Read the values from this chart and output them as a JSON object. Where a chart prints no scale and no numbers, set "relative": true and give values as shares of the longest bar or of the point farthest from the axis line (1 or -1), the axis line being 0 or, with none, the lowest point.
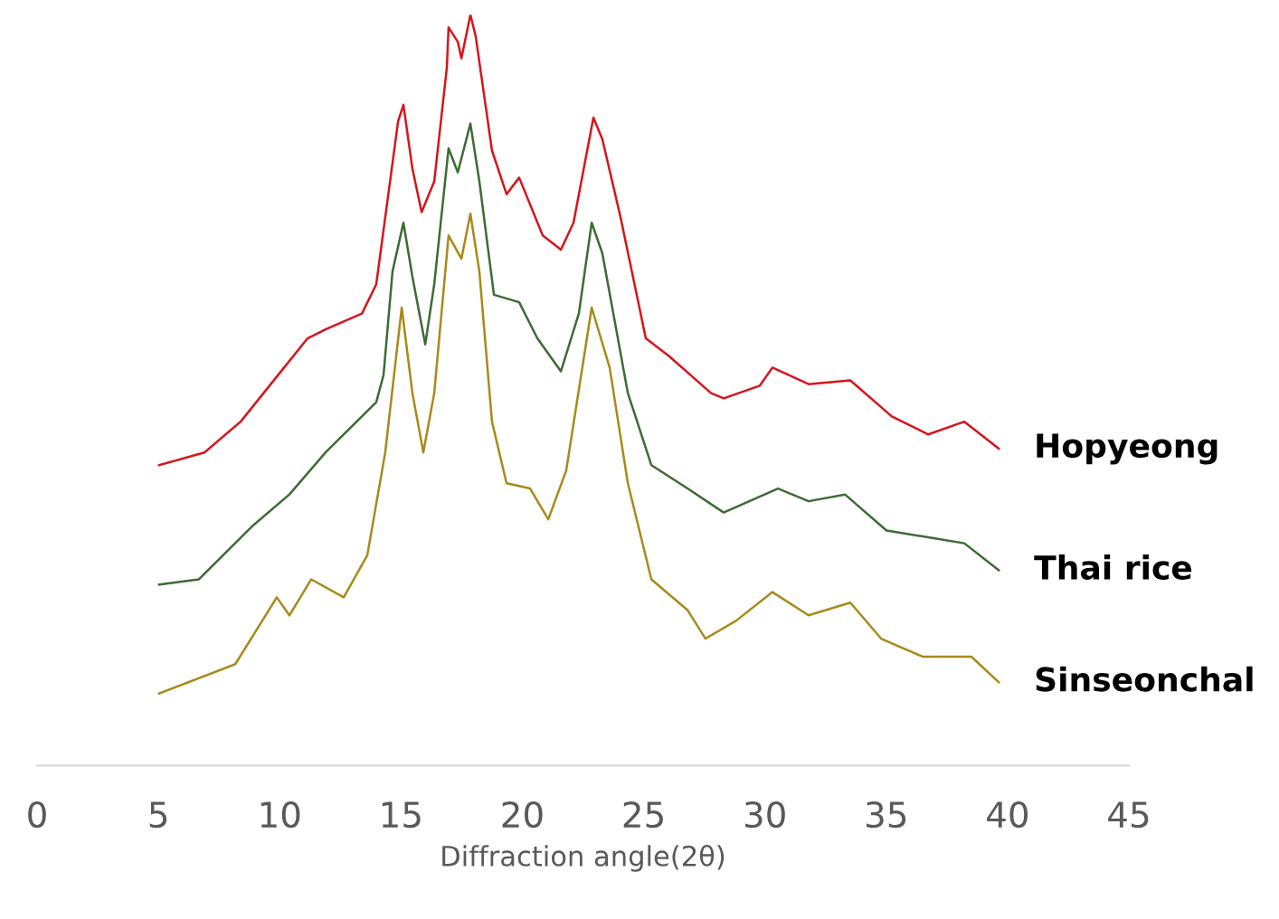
{
  "chart_data": {
    "type": "line",
    "xlabel": "Diffraction angle(2θ)",
    "relative": true,
    "xlim": [
      0,
      45
    ],
    "xticks": [
      0,
      5,
      10,
      15,
      20,
      25,
      30,
      35,
      40,
      45
    ],
    "series": [
      {
        "name": "Hopyeong",
        "color": "#d8141c",
        "x": [
          5.03,
          6.9,
          8.39,
          10.18,
          11.15,
          11.89,
          13.39,
          13.98,
          14.88,
          15.1,
          15.47,
          15.85,
          16.37,
          16.89,
          16.96,
          17.34,
          17.49,
          17.86,
          18.08,
          18.75,
          19.35,
          19.87,
          20.84,
          21.59,
          22.11,
          22.93,
          23.3,
          24.05,
          25.09,
          26.06,
          27.78,
          28.3,
          29.79,
          30.31,
          31.8,
          33.52,
          35.23,
          36.73,
          38.22,
          39.64
        ],
        "values": [
          0.4,
          0.417,
          0.458,
          0.53,
          0.569,
          0.581,
          0.602,
          0.641,
          0.858,
          0.88,
          0.795,
          0.737,
          0.778,
          0.93,
          0.983,
          0.964,
          0.942,
          1.0,
          0.971,
          0.819,
          0.761,
          0.783,
          0.706,
          0.687,
          0.723,
          0.863,
          0.834,
          0.73,
          0.569,
          0.545,
          0.496,
          0.489,
          0.506,
          0.53,
          0.508,
          0.513,
          0.465,
          0.441,
          0.458,
          0.422
        ]
      },
      {
        "name": "Thai rice",
        "color": "#3d6b35",
        "x": [
          5.03,
          6.67,
          8.91,
          10.4,
          11.89,
          13.98,
          14.28,
          14.65,
          15.1,
          15.47,
          16.0,
          16.37,
          16.96,
          17.34,
          17.86,
          18.23,
          18.83,
          19.87,
          20.62,
          21.59,
          22.33,
          22.86,
          23.3,
          24.35,
          25.32,
          26.81,
          28.3,
          30.54,
          31.8,
          33.3,
          35.01,
          36.73,
          38.22,
          39.64
        ],
        "values": [
          0.241,
          0.248,
          0.32,
          0.361,
          0.417,
          0.484,
          0.52,
          0.658,
          0.723,
          0.651,
          0.561,
          0.641,
          0.822,
          0.79,
          0.855,
          0.778,
          0.627,
          0.617,
          0.569,
          0.525,
          0.602,
          0.723,
          0.682,
          0.496,
          0.4,
          0.369,
          0.337,
          0.369,
          0.352,
          0.361,
          0.313,
          0.304,
          0.296,
          0.26
        ]
      },
      {
        "name": "Sinseonchal",
        "color": "#a88a1a",
        "x": [
          5.03,
          8.17,
          9.88,
          10.4,
          11.3,
          12.64,
          13.61,
          14.35,
          15.03,
          15.47,
          15.92,
          16.37,
          16.96,
          17.49,
          17.86,
          18.23,
          18.75,
          19.35,
          20.32,
          21.07,
          21.81,
          22.86,
          23.6,
          24.35,
          25.32,
          26.81,
          27.55,
          28.82,
          30.31,
          31.8,
          33.52,
          34.79,
          36.5,
          38.51,
          39.64
        ],
        "values": [
          0.096,
          0.135,
          0.224,
          0.2,
          0.248,
          0.224,
          0.28,
          0.417,
          0.61,
          0.496,
          0.417,
          0.496,
          0.706,
          0.675,
          0.735,
          0.658,
          0.458,
          0.376,
          0.369,
          0.328,
          0.393,
          0.61,
          0.53,
          0.376,
          0.248,
          0.207,
          0.169,
          0.193,
          0.231,
          0.2,
          0.217,
          0.169,
          0.145,
          0.145,
          0.111
        ]
      }
    ]
  }
}
